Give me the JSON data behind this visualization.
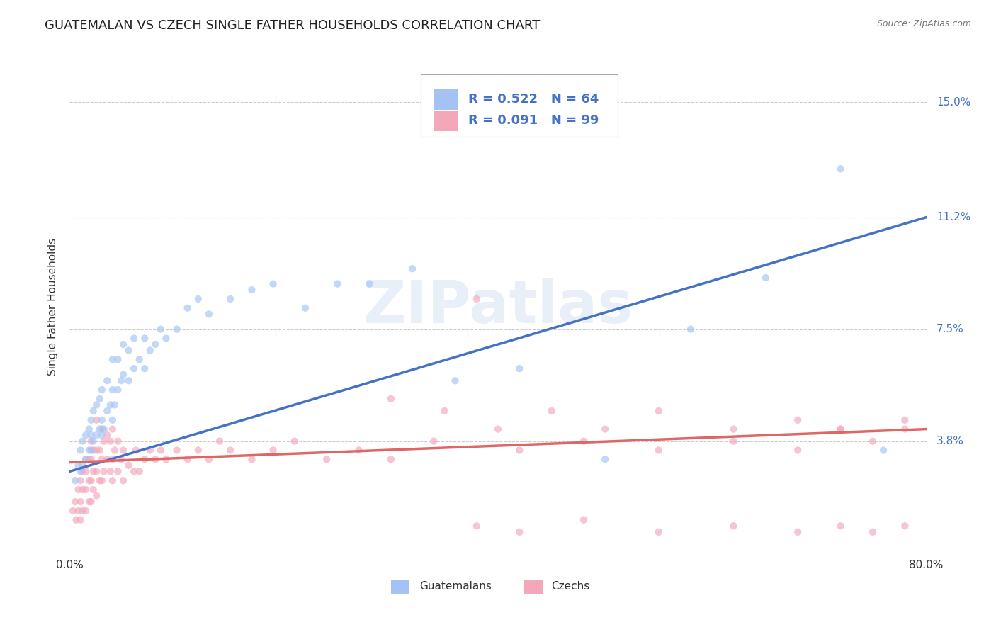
{
  "title": "GUATEMALAN VS CZECH SINGLE FATHER HOUSEHOLDS CORRELATION CHART",
  "source": "Source: ZipAtlas.com",
  "ylabel": "Single Father Households",
  "watermark": "ZIPatlas",
  "xlim": [
    0.0,
    0.8
  ],
  "ylim": [
    0.0,
    0.165
  ],
  "ytick_positions": [
    0.038,
    0.075,
    0.112,
    0.15
  ],
  "ytick_labels": [
    "3.8%",
    "7.5%",
    "11.2%",
    "15.0%"
  ],
  "guatemalan_color": "#a4c2f4",
  "czech_color": "#f4a7b9",
  "guatemalan_line_color": "#4472c4",
  "czech_line_color": "#e06666",
  "guatemalan_R": 0.522,
  "guatemalan_N": 64,
  "czech_R": 0.091,
  "czech_N": 99,
  "legend_label_guatemalans": "Guatemalans",
  "legend_label_czechs": "Czechs",
  "guatemalan_x": [
    0.005,
    0.008,
    0.01,
    0.01,
    0.012,
    0.012,
    0.015,
    0.015,
    0.018,
    0.018,
    0.02,
    0.02,
    0.02,
    0.022,
    0.022,
    0.025,
    0.025,
    0.028,
    0.028,
    0.03,
    0.03,
    0.03,
    0.032,
    0.035,
    0.035,
    0.038,
    0.04,
    0.04,
    0.04,
    0.042,
    0.045,
    0.045,
    0.048,
    0.05,
    0.05,
    0.055,
    0.055,
    0.06,
    0.06,
    0.065,
    0.07,
    0.07,
    0.075,
    0.08,
    0.085,
    0.09,
    0.1,
    0.11,
    0.12,
    0.13,
    0.15,
    0.17,
    0.19,
    0.22,
    0.25,
    0.28,
    0.32,
    0.36,
    0.42,
    0.5,
    0.58,
    0.65,
    0.72,
    0.76
  ],
  "guatemalan_y": [
    0.025,
    0.03,
    0.028,
    0.035,
    0.03,
    0.038,
    0.032,
    0.04,
    0.035,
    0.042,
    0.035,
    0.04,
    0.045,
    0.038,
    0.048,
    0.04,
    0.05,
    0.042,
    0.052,
    0.04,
    0.045,
    0.055,
    0.042,
    0.048,
    0.058,
    0.05,
    0.045,
    0.055,
    0.065,
    0.05,
    0.055,
    0.065,
    0.058,
    0.06,
    0.07,
    0.058,
    0.068,
    0.062,
    0.072,
    0.065,
    0.062,
    0.072,
    0.068,
    0.07,
    0.075,
    0.072,
    0.075,
    0.082,
    0.085,
    0.08,
    0.085,
    0.088,
    0.09,
    0.082,
    0.09,
    0.09,
    0.095,
    0.058,
    0.062,
    0.032,
    0.075,
    0.092,
    0.128,
    0.035
  ],
  "czech_x": [
    0.003,
    0.005,
    0.006,
    0.008,
    0.008,
    0.01,
    0.01,
    0.01,
    0.012,
    0.012,
    0.012,
    0.015,
    0.015,
    0.015,
    0.015,
    0.018,
    0.018,
    0.018,
    0.02,
    0.02,
    0.02,
    0.02,
    0.022,
    0.022,
    0.022,
    0.025,
    0.025,
    0.025,
    0.025,
    0.028,
    0.028,
    0.03,
    0.03,
    0.03,
    0.032,
    0.032,
    0.035,
    0.035,
    0.038,
    0.038,
    0.04,
    0.04,
    0.04,
    0.042,
    0.045,
    0.045,
    0.048,
    0.05,
    0.05,
    0.055,
    0.06,
    0.062,
    0.065,
    0.07,
    0.075,
    0.08,
    0.085,
    0.09,
    0.1,
    0.11,
    0.12,
    0.13,
    0.14,
    0.15,
    0.17,
    0.19,
    0.21,
    0.24,
    0.27,
    0.3,
    0.34,
    0.38,
    0.42,
    0.48,
    0.55,
    0.62,
    0.68,
    0.72,
    0.75,
    0.78,
    0.3,
    0.35,
    0.4,
    0.45,
    0.5,
    0.55,
    0.38,
    0.42,
    0.48,
    0.55,
    0.62,
    0.68,
    0.72,
    0.75,
    0.78,
    0.62,
    0.68,
    0.72,
    0.78
  ],
  "czech_y": [
    0.015,
    0.018,
    0.012,
    0.015,
    0.022,
    0.012,
    0.018,
    0.025,
    0.015,
    0.022,
    0.028,
    0.015,
    0.022,
    0.028,
    0.032,
    0.018,
    0.025,
    0.032,
    0.018,
    0.025,
    0.032,
    0.038,
    0.022,
    0.028,
    0.035,
    0.02,
    0.028,
    0.035,
    0.045,
    0.025,
    0.035,
    0.025,
    0.032,
    0.042,
    0.028,
    0.038,
    0.032,
    0.04,
    0.028,
    0.038,
    0.025,
    0.032,
    0.042,
    0.035,
    0.028,
    0.038,
    0.032,
    0.025,
    0.035,
    0.03,
    0.028,
    0.035,
    0.028,
    0.032,
    0.035,
    0.032,
    0.035,
    0.032,
    0.035,
    0.032,
    0.035,
    0.032,
    0.038,
    0.035,
    0.032,
    0.035,
    0.038,
    0.032,
    0.035,
    0.032,
    0.038,
    0.085,
    0.035,
    0.038,
    0.035,
    0.038,
    0.035,
    0.042,
    0.038,
    0.042,
    0.052,
    0.048,
    0.042,
    0.048,
    0.042,
    0.048,
    0.01,
    0.008,
    0.012,
    0.008,
    0.01,
    0.008,
    0.01,
    0.008,
    0.01,
    0.042,
    0.045,
    0.042,
    0.045
  ],
  "background_color": "#ffffff",
  "grid_color": "#cccccc",
  "title_fontsize": 13,
  "axis_label_fontsize": 11,
  "tick_fontsize": 11,
  "dot_size": 55,
  "dot_alpha": 0.65,
  "line_width": 2.5,
  "guate_line_x0": 0.0,
  "guate_line_y0": 0.028,
  "guate_line_x1": 0.8,
  "guate_line_y1": 0.112,
  "czech_line_x0": 0.0,
  "czech_line_y0": 0.031,
  "czech_line_x1": 0.8,
  "czech_line_y1": 0.042
}
